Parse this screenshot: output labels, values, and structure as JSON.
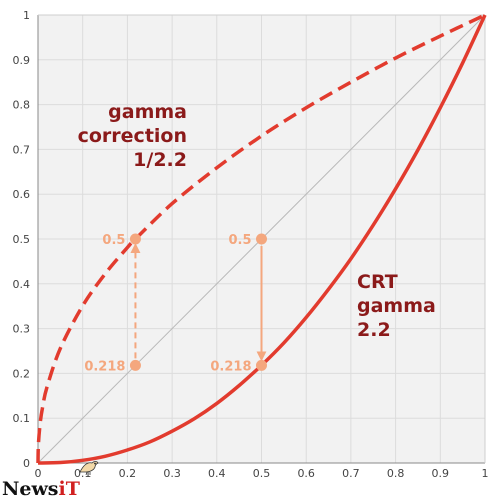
{
  "chart_data": {
    "type": "line",
    "xlim": [
      0,
      1
    ],
    "ylim": [
      0,
      1
    ],
    "grid": true,
    "x_ticks": [
      "0",
      "0.1",
      "0.2",
      "0.3",
      "0.4",
      "0.5",
      "0.6",
      "0.7",
      "0.8",
      "0.9",
      "1"
    ],
    "y_ticks": [
      "0",
      "0.1",
      "0.2",
      "0.3",
      "0.4",
      "0.5",
      "0.6",
      "0.7",
      "0.8",
      "0.9",
      "1"
    ],
    "series": [
      {
        "style": "dashed",
        "color": "#e23b2e",
        "x": [
          0,
          0.001,
          0.005,
          0.01,
          0.02,
          0.05,
          0.1,
          0.15,
          0.2,
          0.218,
          0.3,
          0.4,
          0.5,
          0.6,
          0.7,
          0.8,
          0.9,
          1
        ],
        "y": [
          0,
          0.043,
          0.09,
          0.123,
          0.169,
          0.256,
          0.351,
          0.422,
          0.481,
          0.5,
          0.579,
          0.659,
          0.73,
          0.793,
          0.85,
          0.904,
          0.953,
          1
        ]
      },
      {
        "style": "solid",
        "color": "#e23b2e",
        "x": [
          0,
          0.05,
          0.1,
          0.15,
          0.2,
          0.25,
          0.3,
          0.35,
          0.4,
          0.45,
          0.5,
          0.55,
          0.6,
          0.65,
          0.7,
          0.75,
          0.8,
          0.85,
          0.9,
          0.95,
          1
        ],
        "y": [
          0,
          0.001,
          0.006,
          0.015,
          0.029,
          0.047,
          0.071,
          0.099,
          0.133,
          0.173,
          0.218,
          0.268,
          0.325,
          0.388,
          0.456,
          0.531,
          0.612,
          0.699,
          0.793,
          0.893,
          1
        ]
      },
      {
        "style": "reference",
        "color": "#b9b9b9",
        "x": [
          0,
          1
        ],
        "y": [
          0,
          1
        ]
      }
    ],
    "annotations": [
      {
        "lines": [
          "gamma",
          "correction",
          "1/2.2"
        ]
      },
      {
        "lines": [
          "CRT",
          "gamma",
          "2.2"
        ]
      }
    ],
    "markers": [
      {
        "x": 0.218,
        "y": 0.218,
        "label": "0.218"
      },
      {
        "x": 0.218,
        "y": 0.5,
        "label": "0.5"
      },
      {
        "x": 0.5,
        "y": 0.5,
        "label": "0.5"
      },
      {
        "x": 0.5,
        "y": 0.218,
        "label": "0.218"
      }
    ],
    "arrows": [
      {
        "from": [
          0.218,
          0.218
        ],
        "to": [
          0.218,
          0.5
        ],
        "style": "dashed"
      },
      {
        "from": [
          0.5,
          0.5
        ],
        "to": [
          0.5,
          0.218
        ],
        "style": "solid"
      }
    ],
    "colors": {
      "curve": "#e23b2e",
      "annotation_text": "#8b1a1a",
      "marker": "#f4a77e",
      "grid": "#dcdcdc",
      "background": "#f2f2f2"
    }
  },
  "watermark": {
    "text_main": "News",
    "text_accent": "iT"
  }
}
